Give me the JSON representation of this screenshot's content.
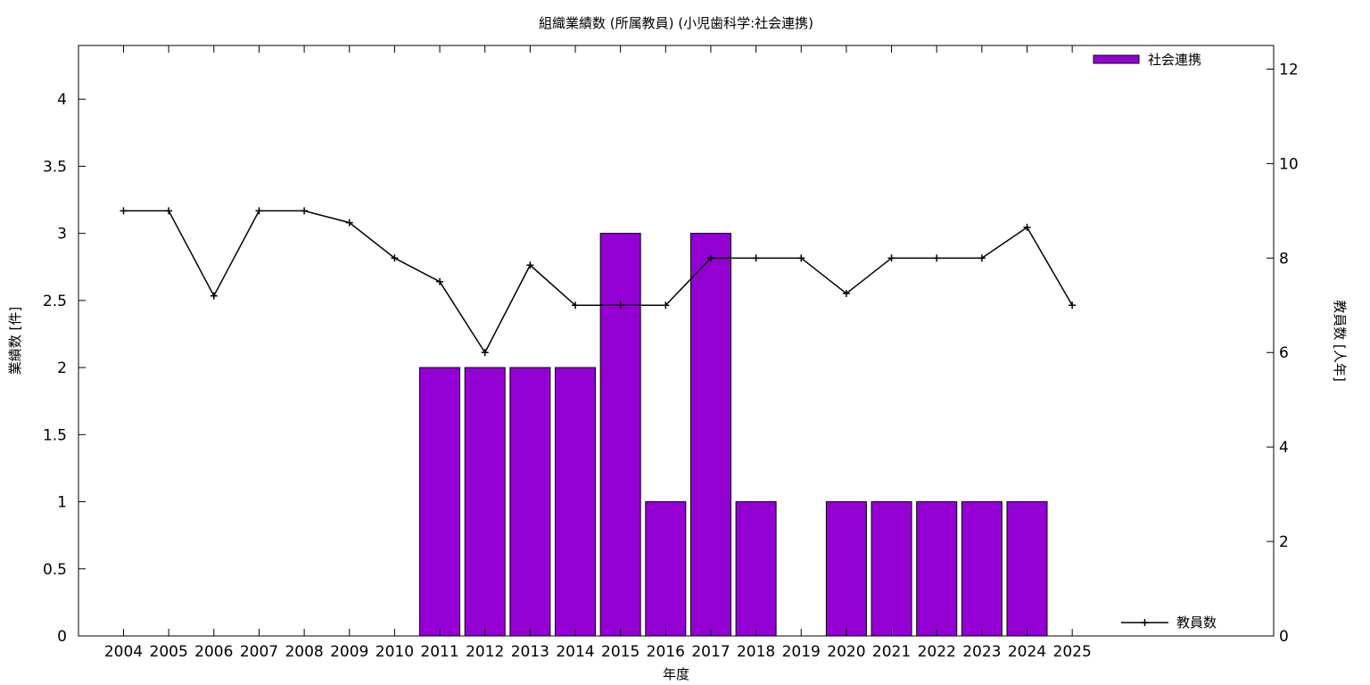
{
  "chart_data": {
    "type": "bar",
    "title": "組織業績数 (所属教員) (小児歯科学:社会連携)",
    "xlabel": "年度",
    "ylabel": "業績数 [件]",
    "y2label": "教員数 [人年]",
    "categories": [
      "2004",
      "2005",
      "2006",
      "2007",
      "2008",
      "2009",
      "2010",
      "2011",
      "2012",
      "2013",
      "2014",
      "2015",
      "2016",
      "2017",
      "2018",
      "2019",
      "2020",
      "2021",
      "2022",
      "2023",
      "2024",
      "2025"
    ],
    "ylim": [
      0,
      4.4
    ],
    "yticks": [
      0,
      0.5,
      1,
      1.5,
      2,
      2.5,
      3,
      3.5,
      4
    ],
    "ytick_labels": [
      "0",
      "0.5",
      "1",
      "1.5",
      "2",
      "2.5",
      "3",
      "3.5",
      "4"
    ],
    "y2lim": [
      0,
      12.5
    ],
    "y2ticks": [
      0,
      2,
      4,
      6,
      8,
      10,
      12
    ],
    "y2tick_labels": [
      "0",
      "2",
      "4",
      "6",
      "8",
      "10",
      "12"
    ],
    "series": [
      {
        "name": "社会連携",
        "kind": "bar",
        "axis": "left",
        "color": "#9400d3",
        "values": [
          0,
          0,
          0,
          0,
          0,
          0,
          0,
          2,
          2,
          2,
          2,
          3,
          1,
          3,
          1,
          0,
          1,
          1,
          1,
          1,
          1,
          0
        ]
      },
      {
        "name": "教員数",
        "kind": "line",
        "axis": "right",
        "color": "#000000",
        "values": [
          9,
          9,
          7.2,
          9,
          9,
          8.75,
          8,
          7.5,
          6,
          7.85,
          7,
          7,
          7,
          8,
          8,
          8,
          7.25,
          8,
          8,
          8,
          8.65,
          7
        ]
      }
    ],
    "legend": [
      "top-right",
      "bottom-right"
    ],
    "grid": false
  }
}
